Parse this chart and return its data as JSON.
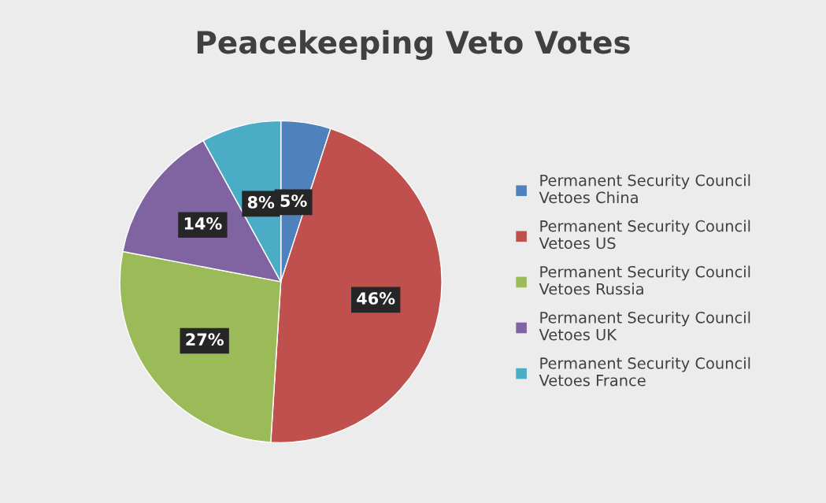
{
  "chart_data": {
    "type": "pie",
    "title": "Peacekeeping Veto Votes",
    "categories": [
      "Permanent Security Council Vetoes China",
      "Permanent Security Council Vetoes US",
      "Permanent Security Council Vetoes Russia",
      "Permanent Security Council Vetoes UK",
      "Permanent Security Council Vetoes France"
    ],
    "values": [
      5,
      46,
      27,
      14,
      8
    ],
    "colors": [
      "#4f81bd",
      "#c0504d",
      "#9bbb59",
      "#8064a2",
      "#4bacc6"
    ],
    "value_labels": [
      "5%",
      "46%",
      "27%",
      "14%",
      "8%"
    ],
    "legend": "right"
  }
}
